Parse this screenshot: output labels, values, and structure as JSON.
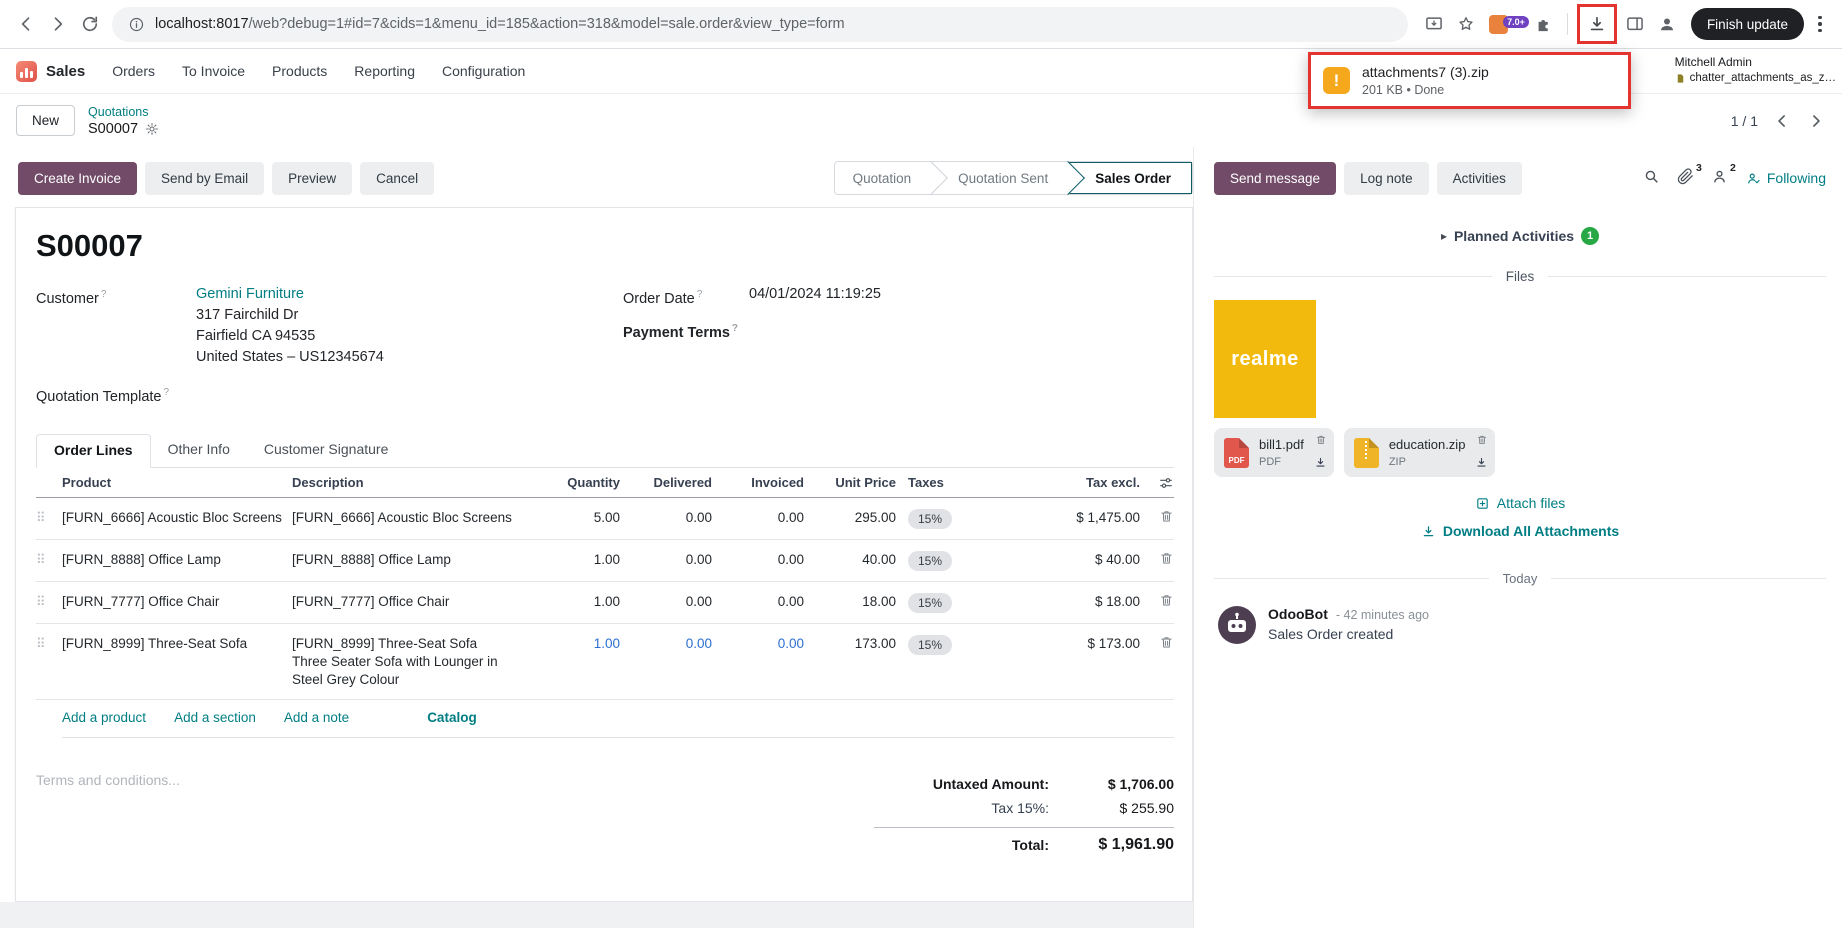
{
  "icons": {
    "drag": "⠿",
    "triangle": "▸"
  },
  "browser": {
    "url_host": "localhost:8017",
    "url_path": "/web?debug=1#id=7&cids=1&menu_id=185&action=318&model=sale.order&view_type=form",
    "extension_badge": "7.0+",
    "finish_update_label": "Finish update",
    "download_popup": {
      "filename": "attachments7 (3).zip",
      "meta": "201 KB • Done"
    }
  },
  "nav": {
    "app_name": "Sales",
    "menus": [
      "Orders",
      "To Invoice",
      "Products",
      "Reporting",
      "Configuration"
    ],
    "user_name": "Mitchell Admin",
    "db_name": "chatter_attachments_as_z…"
  },
  "breadcrumb": {
    "new_label": "New",
    "parent": "Quotations",
    "current": "S00007",
    "pager": "1 / 1"
  },
  "actions": {
    "create_invoice": "Create Invoice",
    "send_by_email": "Send by Email",
    "preview": "Preview",
    "cancel": "Cancel"
  },
  "statusbar": {
    "steps": [
      "Quotation",
      "Quotation Sent",
      "Sales Order"
    ],
    "active": "Sales Order"
  },
  "form": {
    "title": "S00007",
    "help_marker": "?",
    "customer_label": "Customer",
    "customer": "Gemini Furniture",
    "address": [
      "317 Fairchild Dr",
      "Fairfield CA 94535",
      "United States – US12345674"
    ],
    "order_date_label": "Order Date",
    "order_date": "04/01/2024 11:19:25",
    "payment_terms_label": "Payment Terms",
    "quotation_template_label": "Quotation Template",
    "tabs": [
      "Order Lines",
      "Other Info",
      "Customer Signature"
    ],
    "active_tab": "Order Lines",
    "terms_placeholder": "Terms and conditions..."
  },
  "order_lines": {
    "columns": [
      "Product",
      "Description",
      "Quantity",
      "Delivered",
      "Invoiced",
      "Unit Price",
      "Taxes",
      "Tax excl."
    ],
    "rows": [
      {
        "product": "[FURN_6666] Acoustic Bloc Screens",
        "description": [
          "[FURN_6666] Acoustic Bloc Screens"
        ],
        "quantity": "5.00",
        "delivered": "0.00",
        "invoiced": "0.00",
        "unit_price": "295.00",
        "taxes": "15%",
        "subtotal": "$ 1,475.00",
        "highlight": false
      },
      {
        "product": "[FURN_8888] Office Lamp",
        "description": [
          "[FURN_8888] Office Lamp"
        ],
        "quantity": "1.00",
        "delivered": "0.00",
        "invoiced": "0.00",
        "unit_price": "40.00",
        "taxes": "15%",
        "subtotal": "$ 40.00",
        "highlight": false
      },
      {
        "product": "[FURN_7777] Office Chair",
        "description": [
          "[FURN_7777] Office Chair"
        ],
        "quantity": "1.00",
        "delivered": "0.00",
        "invoiced": "0.00",
        "unit_price": "18.00",
        "taxes": "15%",
        "subtotal": "$ 18.00",
        "highlight": false
      },
      {
        "product": "[FURN_8999] Three-Seat Sofa",
        "description": [
          "[FURN_8999] Three-Seat Sofa",
          "Three Seater Sofa with Lounger in",
          "Steel Grey Colour"
        ],
        "quantity": "1.00",
        "delivered": "0.00",
        "invoiced": "0.00",
        "unit_price": "173.00",
        "taxes": "15%",
        "subtotal": "$ 173.00",
        "highlight": true
      }
    ],
    "footer_links": [
      "Add a product",
      "Add a section",
      "Add a note"
    ],
    "catalog_link": "Catalog"
  },
  "totals": {
    "untaxed_label": "Untaxed Amount:",
    "untaxed": "$ 1,706.00",
    "tax_label": "Tax 15%:",
    "tax": "$ 255.90",
    "total_label": "Total:",
    "total": "$ 1,961.90"
  },
  "chatter": {
    "send_message": "Send message",
    "log_note": "Log note",
    "activities": "Activities",
    "attachments_count": "3",
    "followers_count": "2",
    "following": "Following",
    "planned_label": "Planned Activities",
    "planned_count": "1",
    "files_label": "Files",
    "image_text": "realme",
    "attachments": [
      {
        "name": "bill1.pdf",
        "type": "PDF"
      },
      {
        "name": "education.zip",
        "type": "ZIP"
      }
    ],
    "attach_files": "Attach files",
    "download_all": "Download All Attachments",
    "today_label": "Today",
    "message": {
      "author": "OdooBot",
      "time": "- 42 minutes ago",
      "body": "Sales Order created"
    }
  },
  "colors": {
    "primary": "#714B67",
    "link": "#017E84",
    "annotation": "#E3342F",
    "success": "#28a745",
    "highlight_value": "#2C6FD1"
  }
}
